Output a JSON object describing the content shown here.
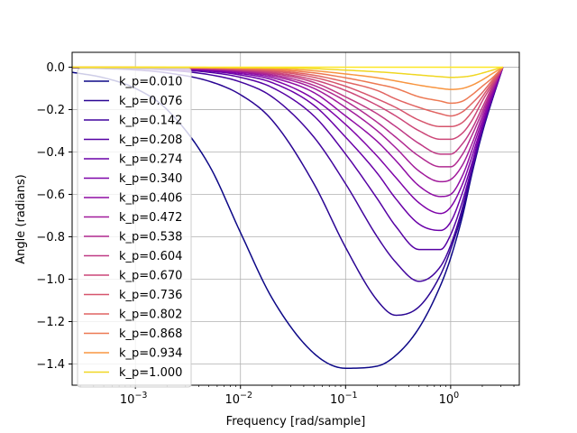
{
  "chart_data": {
    "type": "line",
    "title": "",
    "xlabel": "Frequency [rad/sample]",
    "ylabel": "Angle (radians)",
    "xscale": "log",
    "xlim": [
      0.00025,
      4.5
    ],
    "ylim": [
      -1.5,
      0.07
    ],
    "grid": true,
    "legend_position": "upper-left",
    "x_ticks": [
      {
        "value": 0.001,
        "base": "10",
        "exp": "−3"
      },
      {
        "value": 0.01,
        "base": "10",
        "exp": "−2"
      },
      {
        "value": 0.1,
        "base": "10",
        "exp": "−1"
      },
      {
        "value": 1,
        "base": "10",
        "exp": "0"
      }
    ],
    "y_ticks": [
      {
        "value": 0.0,
        "label": "0.0"
      },
      {
        "value": -0.2,
        "label": "−0.2"
      },
      {
        "value": -0.4,
        "label": "−0.4"
      },
      {
        "value": -0.6,
        "label": "−0.6"
      },
      {
        "value": -0.8,
        "label": "−0.8"
      },
      {
        "value": -1.0,
        "label": "−1.0"
      },
      {
        "value": -1.2,
        "label": "−1.2"
      },
      {
        "value": -1.4,
        "label": "−1.4"
      }
    ],
    "x": [
      0.00025,
      0.0005,
      0.001,
      0.002,
      0.005,
      0.01,
      0.02,
      0.05,
      0.1,
      0.2,
      0.3,
      0.5,
      0.8,
      1.0,
      1.3,
      1.6,
      2.0,
      2.5,
      3.14159
    ],
    "series": [
      {
        "name": "k_p=0.010",
        "color": "#0d0887",
        "values": [
          -0.024,
          -0.05,
          -0.1,
          -0.2,
          -0.46,
          -0.78,
          -1.09,
          -1.35,
          -1.42,
          -1.41,
          -1.36,
          -1.23,
          -1.03,
          -0.9,
          -0.7,
          -0.5,
          -0.31,
          -0.15,
          0.0
        ]
      },
      {
        "name": "k_p=0.076",
        "color": "#2a0593",
        "values": [
          -0.003,
          -0.007,
          -0.013,
          -0.027,
          -0.066,
          -0.13,
          -0.25,
          -0.55,
          -0.85,
          -1.1,
          -1.17,
          -1.13,
          -0.98,
          -0.86,
          -0.68,
          -0.49,
          -0.3,
          -0.15,
          0.0
        ]
      },
      {
        "name": "k_p=0.142",
        "color": "#41049d",
        "values": [
          -0.002,
          -0.004,
          -0.007,
          -0.014,
          -0.035,
          -0.07,
          -0.14,
          -0.33,
          -0.55,
          -0.8,
          -0.92,
          -1.01,
          -0.94,
          -0.84,
          -0.66,
          -0.48,
          -0.3,
          -0.14,
          0.0
        ]
      },
      {
        "name": "k_p=0.208",
        "color": "#5601a4",
        "values": [
          -0.001,
          -0.002,
          -0.005,
          -0.01,
          -0.024,
          -0.048,
          -0.096,
          -0.23,
          -0.41,
          -0.62,
          -0.75,
          -0.86,
          -0.86,
          -0.79,
          -0.63,
          -0.47,
          -0.29,
          -0.14,
          0.0
        ]
      },
      {
        "name": "k_p=0.274",
        "color": "#6a00a8",
        "values": [
          -0.001,
          -0.002,
          -0.004,
          -0.007,
          -0.018,
          -0.037,
          -0.073,
          -0.18,
          -0.33,
          -0.5,
          -0.62,
          -0.74,
          -0.77,
          -0.73,
          -0.59,
          -0.45,
          -0.28,
          -0.14,
          0.0
        ]
      },
      {
        "name": "k_p=0.340",
        "color": "#7e03a8",
        "values": [
          -0.001,
          -0.002,
          -0.003,
          -0.006,
          -0.015,
          -0.03,
          -0.059,
          -0.15,
          -0.27,
          -0.42,
          -0.52,
          -0.64,
          -0.69,
          -0.66,
          -0.55,
          -0.42,
          -0.27,
          -0.13,
          0.0
        ]
      },
      {
        "name": "k_p=0.406",
        "color": "#8f0da4",
        "values": [
          0.0,
          -0.001,
          -0.002,
          -0.005,
          -0.012,
          -0.024,
          -0.049,
          -0.12,
          -0.23,
          -0.35,
          -0.44,
          -0.56,
          -0.61,
          -0.6,
          -0.51,
          -0.39,
          -0.25,
          -0.12,
          0.0
        ]
      },
      {
        "name": "k_p=0.472",
        "color": "#a11b9b",
        "values": [
          0.0,
          -0.001,
          -0.002,
          -0.004,
          -0.01,
          -0.02,
          -0.041,
          -0.1,
          -0.19,
          -0.3,
          -0.38,
          -0.49,
          -0.54,
          -0.53,
          -0.46,
          -0.36,
          -0.23,
          -0.11,
          0.0
        ]
      },
      {
        "name": "k_p=0.538",
        "color": "#b12a90",
        "values": [
          0.0,
          -0.001,
          -0.002,
          -0.004,
          -0.009,
          -0.017,
          -0.035,
          -0.086,
          -0.16,
          -0.26,
          -0.33,
          -0.42,
          -0.47,
          -0.47,
          -0.41,
          -0.32,
          -0.21,
          -0.1,
          0.0
        ]
      },
      {
        "name": "k_p=0.604",
        "color": "#bf3984",
        "values": [
          0.0,
          -0.001,
          -0.001,
          -0.003,
          -0.007,
          -0.014,
          -0.029,
          -0.072,
          -0.14,
          -0.22,
          -0.28,
          -0.36,
          -0.41,
          -0.41,
          -0.36,
          -0.29,
          -0.19,
          -0.09,
          0.0
        ]
      },
      {
        "name": "k_p=0.670",
        "color": "#cc4778",
        "values": [
          0.0,
          0.0,
          -0.001,
          -0.002,
          -0.006,
          -0.012,
          -0.024,
          -0.06,
          -0.11,
          -0.18,
          -0.23,
          -0.3,
          -0.34,
          -0.34,
          -0.31,
          -0.25,
          -0.16,
          -0.08,
          0.0
        ]
      },
      {
        "name": "k_p=0.736",
        "color": "#d6556d",
        "values": [
          0.0,
          0.0,
          -0.001,
          -0.002,
          -0.005,
          -0.01,
          -0.019,
          -0.048,
          -0.09,
          -0.15,
          -0.19,
          -0.25,
          -0.28,
          -0.28,
          -0.26,
          -0.21,
          -0.14,
          -0.07,
          0.0
        ]
      },
      {
        "name": "k_p=0.802",
        "color": "#e16462",
        "values": [
          0.0,
          0.0,
          -0.001,
          -0.002,
          -0.004,
          -0.008,
          -0.015,
          -0.038,
          -0.07,
          -0.11,
          -0.15,
          -0.19,
          -0.22,
          -0.23,
          -0.21,
          -0.17,
          -0.12,
          -0.06,
          0.0
        ]
      },
      {
        "name": "k_p=0.868",
        "color": "#ed7953",
        "values": [
          0.0,
          0.0,
          -0.001,
          -0.001,
          -0.003,
          -0.006,
          -0.011,
          -0.027,
          -0.05,
          -0.08,
          -0.1,
          -0.14,
          -0.16,
          -0.17,
          -0.16,
          -0.13,
          -0.09,
          -0.05,
          0.0
        ]
      },
      {
        "name": "k_p=0.934",
        "color": "#f89540",
        "values": [
          0.0,
          0.0,
          0.0,
          -0.001,
          -0.002,
          -0.004,
          -0.007,
          -0.017,
          -0.032,
          -0.05,
          -0.065,
          -0.085,
          -0.1,
          -0.105,
          -0.1,
          -0.085,
          -0.06,
          -0.03,
          0.0
        ]
      },
      {
        "name": "k_p=1.000",
        "color": "#f0d722",
        "values": [
          0.0,
          0.0,
          0.0,
          0.0,
          -0.001,
          -0.002,
          -0.003,
          -0.007,
          -0.014,
          -0.022,
          -0.028,
          -0.037,
          -0.045,
          -0.048,
          -0.046,
          -0.04,
          -0.028,
          -0.014,
          0.0
        ]
      },
      {
        "name": "",
        "color": "#fde725",
        "values": [
          0.0,
          0.0,
          0.0,
          0.0,
          0.0,
          0.0,
          0.0,
          0.0,
          0.0,
          0.0,
          0.0,
          0.0,
          0.0,
          0.0,
          0.0,
          0.0,
          0.0,
          0.0,
          0.0
        ]
      }
    ]
  }
}
